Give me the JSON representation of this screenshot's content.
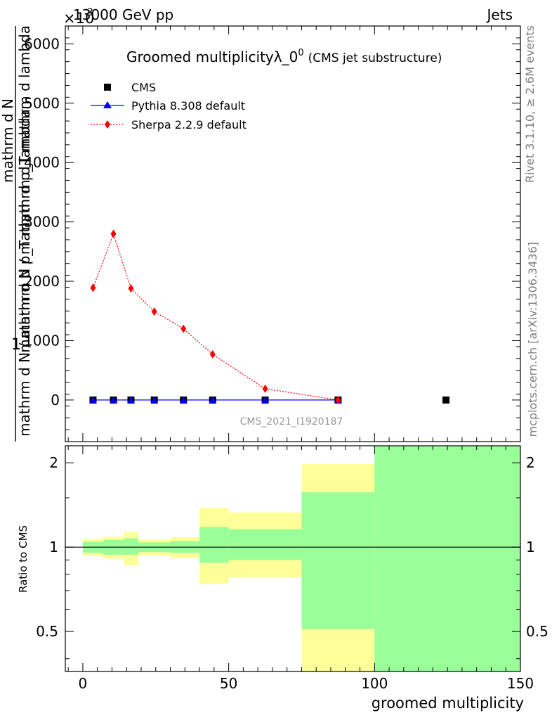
{
  "header": {
    "beam": "13000 GeV pp",
    "category": "Jets",
    "exponent": "×10",
    "exponent_power": "3"
  },
  "side": {
    "rivet": "Rivet 3.1.10, ≥ 2.6M events",
    "mcplots": "mcplots.cern.ch [arXiv:1306.3436]"
  },
  "chart_data": {
    "type": "line",
    "title": "Groomed multiplicityλ_0",
    "title_sup": "0",
    "subtitle": "(CMS jet substructure)",
    "watermark": "CMS_2021_I1920187",
    "xlabel": "groomed multiplicity",
    "ylabel_main": "mathrm d N / mathrm d p_T mathrm d lambda",
    "ylabel_extra_top": "mathrm d N",
    "ylabel_extra_frac": "mathrm d N / mathrm d p_T mathrm d lambda",
    "ylabel_one": "1",
    "ratio_ylabel": "Ratio to CMS",
    "xlim": [
      -6,
      150
    ],
    "ylim": [
      -700,
      6300
    ],
    "ratio_ylim": [
      0.36,
      2.3
    ],
    "x_ticks": [
      0,
      50,
      100,
      150
    ],
    "y_ticks": [
      0,
      1000,
      2000,
      3000,
      4000,
      5000,
      6000
    ],
    "ratio_ticks": [
      0.5,
      1,
      2
    ],
    "x_tick_labels": [
      "0",
      "50",
      "100",
      "150"
    ],
    "y_tick_labels": [
      "0",
      "1000",
      "2000",
      "3000",
      "4000",
      "5000",
      "6000"
    ],
    "ratio_tick_labels": [
      "0.5",
      "1",
      "2"
    ],
    "legend": {
      "placement": "top-left",
      "entries": [
        "CMS",
        "Pythia 8.308 default",
        "Sherpa 2.2.9 default"
      ]
    },
    "series": [
      {
        "name": "CMS",
        "marker": "square",
        "color": "#000000",
        "x": [
          3.5,
          10.5,
          16.5,
          24.5,
          34.5,
          44.5,
          62.5,
          87.5,
          124.5
        ],
        "y": [
          0,
          0,
          0,
          0,
          0,
          0,
          0,
          0,
          0
        ]
      },
      {
        "name": "Pythia 8.308 default",
        "marker": "triangle",
        "color": "#0000ff",
        "x": [
          3.5,
          10.5,
          16.5,
          24.5,
          34.5,
          44.5,
          62.5,
          87.5
        ],
        "y": [
          0,
          0,
          0,
          0,
          0,
          0,
          0,
          0
        ]
      },
      {
        "name": "Sherpa 2.2.9 default",
        "marker": "diamond",
        "color": "#ff0000",
        "x": [
          3.5,
          10.5,
          16.5,
          24.5,
          34.5,
          44.5,
          62.5,
          87.5
        ],
        "y": [
          1890,
          2800,
          1880,
          1490,
          1200,
          770,
          190,
          0
        ]
      }
    ],
    "ratio_bands": [
      {
        "x0": 0,
        "x1": 7,
        "yellow": [
          0.93,
          1.07
        ],
        "green": [
          0.955,
          1.045
        ]
      },
      {
        "x0": 7,
        "x1": 14,
        "yellow": [
          0.91,
          1.09
        ],
        "green": [
          0.94,
          1.06
        ]
      },
      {
        "x0": 14,
        "x1": 19,
        "yellow": [
          0.86,
          1.13
        ],
        "green": [
          0.94,
          1.075
        ]
      },
      {
        "x0": 19,
        "x1": 30,
        "yellow": [
          0.935,
          1.065
        ],
        "green": [
          0.96,
          1.04
        ]
      },
      {
        "x0": 30,
        "x1": 40,
        "yellow": [
          0.915,
          1.085
        ],
        "green": [
          0.955,
          1.05
        ]
      },
      {
        "x0": 40,
        "x1": 50,
        "yellow": [
          0.74,
          1.38
        ],
        "green": [
          0.88,
          1.18
        ]
      },
      {
        "x0": 50,
        "x1": 75,
        "yellow": [
          0.78,
          1.33
        ],
        "green": [
          0.9,
          1.16
        ]
      },
      {
        "x0": 75,
        "x1": 100,
        "yellow": [
          0.36,
          1.98
        ],
        "green": [
          0.51,
          1.57
        ]
      },
      {
        "x0": 100,
        "x1": 150,
        "yellow": [
          0.36,
          2.3
        ],
        "green": [
          0.36,
          2.3
        ]
      }
    ],
    "colors": {
      "band_yellow": "#ffff99",
      "band_green": "#99ff99",
      "watermark": "#999999"
    }
  }
}
